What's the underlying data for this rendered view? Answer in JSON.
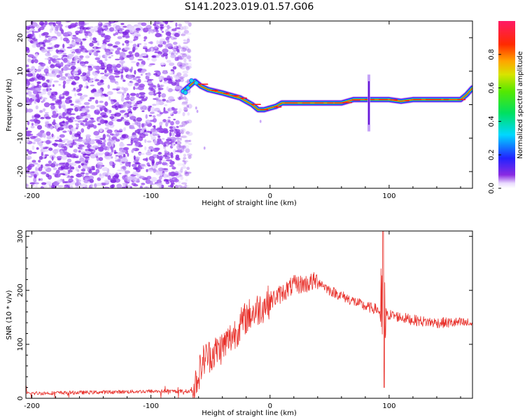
{
  "title": "S141.2023.019.01.57.G06",
  "chart_data": [
    {
      "type": "heatmap",
      "title": "S141.2023.019.01.57.G06",
      "xlabel": "Height of straight line (km)",
      "ylabel": "Frequency (Hz)",
      "xlim": [
        -205,
        170
      ],
      "ylim": [
        -25,
        25
      ],
      "xticks": [
        -200,
        -100,
        0,
        100
      ],
      "yticks": [
        20,
        10,
        0,
        -10,
        -20
      ],
      "colorbar": {
        "label": "Normalized spectral amplitude",
        "range": [
          0,
          1
        ],
        "ticks": [
          "0.0",
          "0.2",
          "0.4",
          "0.6",
          "0.8"
        ]
      },
      "noise_region_x": [
        -205,
        -73
      ],
      "ridge": {
        "x": [
          -73,
          -68,
          -63,
          -58,
          -52,
          -46,
          -40,
          -35,
          -30,
          -25,
          -20,
          -15,
          -10,
          -5,
          0,
          5,
          10,
          20,
          30,
          40,
          50,
          60,
          70,
          80,
          85,
          90,
          100,
          110,
          120,
          130,
          140,
          150,
          160,
          165,
          170
        ],
        "y": [
          4,
          5.5,
          7,
          5.5,
          4.5,
          4,
          3.5,
          3,
          2.5,
          2,
          1,
          0,
          -1.5,
          -1.5,
          -1,
          -0.5,
          0.5,
          0.5,
          0.5,
          0.5,
          0.5,
          0.5,
          1.5,
          1.5,
          1.5,
          1.5,
          1.5,
          1,
          1.5,
          1.5,
          1.5,
          1.5,
          1.5,
          3,
          5
        ]
      },
      "disturbance": {
        "x": 83,
        "y_range": [
          -8,
          9
        ]
      },
      "grid": false
    },
    {
      "type": "line",
      "xlabel": "Height of straight line (km)",
      "ylabel": "SNR (10 * v/v)",
      "xlim": [
        -205,
        170
      ],
      "ylim": [
        0,
        310
      ],
      "xticks": [
        -200,
        -100,
        0,
        100
      ],
      "yticks": [
        0,
        100,
        200,
        300
      ],
      "color": "#e8302a",
      "envelope": {
        "x": [
          -205,
          -150,
          -100,
          -75,
          -65,
          -60,
          -55,
          -50,
          -40,
          -30,
          -20,
          -10,
          0,
          10,
          20,
          30,
          40,
          50,
          60,
          70,
          80,
          90,
          95,
          100,
          110,
          120,
          130,
          140,
          150,
          160,
          170
        ],
        "y": [
          9,
          11,
          13,
          13,
          13,
          45,
          75,
          80,
          95,
          120,
          150,
          165,
          180,
          195,
          210,
          212,
          218,
          200,
          190,
          180,
          170,
          165,
          150,
          155,
          150,
          145,
          142,
          140,
          140,
          140,
          138
        ]
      },
      "spike": {
        "x": 95,
        "peak": 310,
        "trough": 20
      },
      "grid": false
    }
  ]
}
